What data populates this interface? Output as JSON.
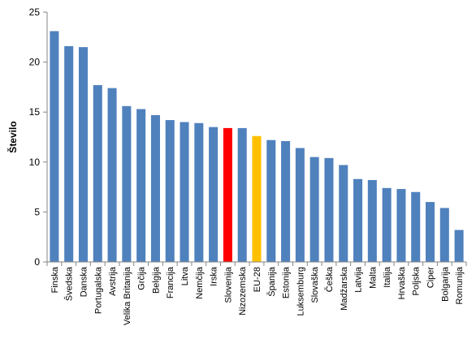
{
  "chart_data": {
    "type": "bar",
    "ylabel": "Število",
    "ylim": [
      0,
      25
    ],
    "yticks": [
      0,
      5,
      10,
      15,
      20,
      25
    ],
    "grid": "none",
    "legend": "none",
    "categories": [
      "Finska",
      "Švedska",
      "Danska",
      "Portugalska",
      "Avstrija",
      "Velika Britanija",
      "Grčija",
      "Belgija",
      "Francija",
      "Litva",
      "Nemčija",
      "Irska",
      "Slovenija",
      "Nizozemska",
      "EU-28",
      "Španija",
      "Estonija",
      "Luksemburg",
      "Slovaška",
      "Češka",
      "Madžarska",
      "Latvija",
      "Malta",
      "Italija",
      "Hrvaška",
      "Poljska",
      "Ciper",
      "Bolgarija",
      "Romunija"
    ],
    "values": [
      23.1,
      21.6,
      21.5,
      17.7,
      17.4,
      15.6,
      15.3,
      14.7,
      14.2,
      14.0,
      13.9,
      13.5,
      13.4,
      13.4,
      12.6,
      12.2,
      12.1,
      11.4,
      10.5,
      10.4,
      9.7,
      8.3,
      8.2,
      7.4,
      7.3,
      7.0,
      6.0,
      5.4,
      3.2
    ],
    "colors": {
      "default": "#4F81BD",
      "highlight_slovenia": "#FF0000",
      "highlight_eu": "#FFC000"
    },
    "bar_color_keys": [
      "default",
      "default",
      "default",
      "default",
      "default",
      "default",
      "default",
      "default",
      "default",
      "default",
      "default",
      "default",
      "highlight_slovenia",
      "default",
      "highlight_eu",
      "default",
      "default",
      "default",
      "default",
      "default",
      "default",
      "default",
      "default",
      "default",
      "default",
      "default",
      "default",
      "default",
      "default"
    ]
  }
}
